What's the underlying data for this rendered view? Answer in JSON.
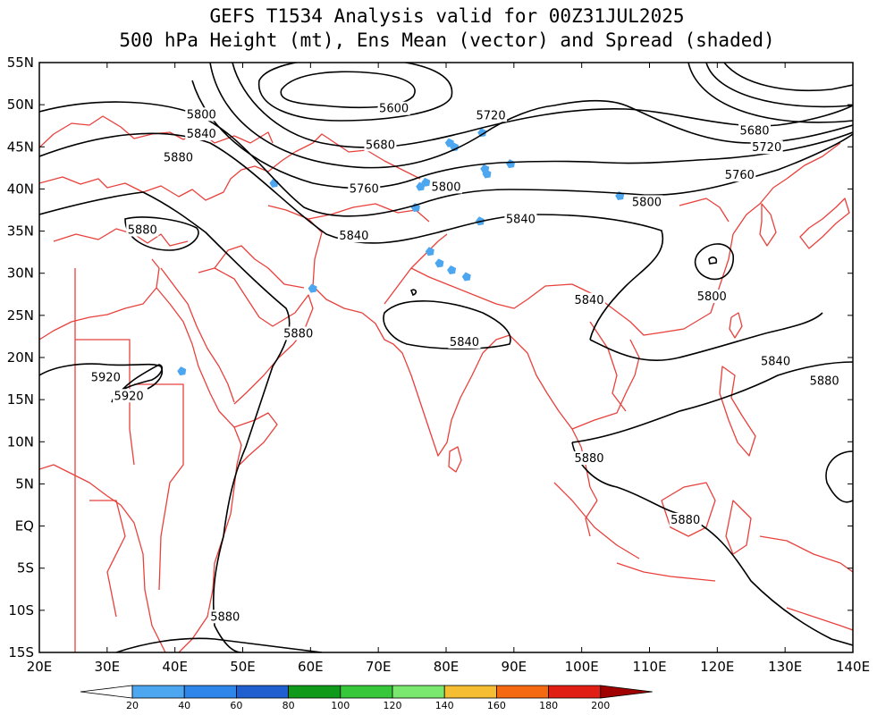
{
  "title_line1": "GEFS T1534 Analysis valid for 00Z31JUL2025",
  "title_line2": "500 hPa Height (mt), Ens Mean (vector) and Spread (shaded)",
  "colors": {
    "contour": "#000000",
    "coastline": "#e8413c",
    "frame": "#000000"
  },
  "map": {
    "lon_range": [
      20,
      140
    ],
    "lat_range": [
      -15,
      55
    ],
    "lon_ticks": [
      "20E",
      "30E",
      "40E",
      "50E",
      "60E",
      "70E",
      "80E",
      "90E",
      "100E",
      "110E",
      "120E",
      "130E",
      "140E"
    ],
    "lat_ticks": [
      "15S",
      "10S",
      "5S",
      "EQ",
      "5N",
      "10N",
      "15N",
      "20N",
      "25N",
      "30N",
      "35N",
      "40N",
      "45N",
      "50N",
      "55N"
    ]
  },
  "contour_labels": [
    {
      "text": "5600",
      "lon": 72.3,
      "lat": 49.3
    },
    {
      "text": "5720",
      "lon": 86.6,
      "lat": 48.5
    },
    {
      "text": "5680",
      "lon": 125.5,
      "lat": 46.7
    },
    {
      "text": "5720",
      "lon": 127.3,
      "lat": 44.7
    },
    {
      "text": "5680",
      "lon": 70.3,
      "lat": 45.0
    },
    {
      "text": "5800",
      "lon": 43.9,
      "lat": 48.6
    },
    {
      "text": "5840",
      "lon": 43.9,
      "lat": 46.3
    },
    {
      "text": "5880",
      "lon": 40.5,
      "lat": 43.5
    },
    {
      "text": "5760",
      "lon": 123.3,
      "lat": 41.4
    },
    {
      "text": "5760",
      "lon": 67.9,
      "lat": 39.8
    },
    {
      "text": "5800",
      "lon": 80.0,
      "lat": 40.0
    },
    {
      "text": "5800",
      "lon": 109.6,
      "lat": 38.2
    },
    {
      "text": "5840",
      "lon": 91.0,
      "lat": 36.2
    },
    {
      "text": "5880",
      "lon": 35.2,
      "lat": 34.9
    },
    {
      "text": "5840",
      "lon": 66.4,
      "lat": 34.2
    },
    {
      "text": "5840",
      "lon": 101.1,
      "lat": 26.6
    },
    {
      "text": "5800",
      "lon": 119.2,
      "lat": 27.0
    },
    {
      "text": "5880",
      "lon": 58.2,
      "lat": 22.6
    },
    {
      "text": "5840",
      "lon": 82.7,
      "lat": 21.6
    },
    {
      "text": "5840",
      "lon": 128.6,
      "lat": 19.3
    },
    {
      "text": "5920",
      "lon": 29.8,
      "lat": 17.4
    },
    {
      "text": "5920",
      "lon": 33.2,
      "lat": 15.2
    },
    {
      "text": "5880",
      "lon": 135.8,
      "lat": 17.0
    },
    {
      "text": "5880",
      "lon": 101.1,
      "lat": 7.8
    },
    {
      "text": "5880",
      "lon": 115.3,
      "lat": 0.5
    },
    {
      "text": "5880",
      "lon": 47.4,
      "lat": -11.0
    }
  ],
  "colorbar": {
    "labels": [
      "20",
      "40",
      "60",
      "80",
      "100",
      "120",
      "140",
      "160",
      "180",
      "200"
    ],
    "colors": [
      "#4da6f0",
      "#2e86ea",
      "#1f5fd0",
      "#0f9a1a",
      "#36c83a",
      "#7ae86e",
      "#f5be32",
      "#f56a10",
      "#e01e14",
      "#a00000"
    ],
    "under_color": "#ffffff",
    "over_color": "#a00000"
  },
  "spread_patches": [
    {
      "lon": 80.5,
      "lat": 45.5
    },
    {
      "lon": 81.2,
      "lat": 45.0
    },
    {
      "lon": 85.7,
      "lat": 42.4
    },
    {
      "lon": 86.0,
      "lat": 41.8
    },
    {
      "lon": 77.0,
      "lat": 40.8
    },
    {
      "lon": 76.2,
      "lat": 40.3
    },
    {
      "lon": 85.0,
      "lat": 36.2
    },
    {
      "lon": 75.5,
      "lat": 37.8
    },
    {
      "lon": 77.6,
      "lat": 32.6
    },
    {
      "lon": 79.0,
      "lat": 31.2
    },
    {
      "lon": 80.8,
      "lat": 30.4
    },
    {
      "lon": 83.0,
      "lat": 29.6
    },
    {
      "lon": 89.5,
      "lat": 43.0
    },
    {
      "lon": 85.3,
      "lat": 46.7
    },
    {
      "lon": 105.6,
      "lat": 39.2
    },
    {
      "lon": 41.0,
      "lat": 18.4
    },
    {
      "lon": 54.6,
      "lat": 40.7
    },
    {
      "lon": 60.3,
      "lat": 28.2
    }
  ]
}
